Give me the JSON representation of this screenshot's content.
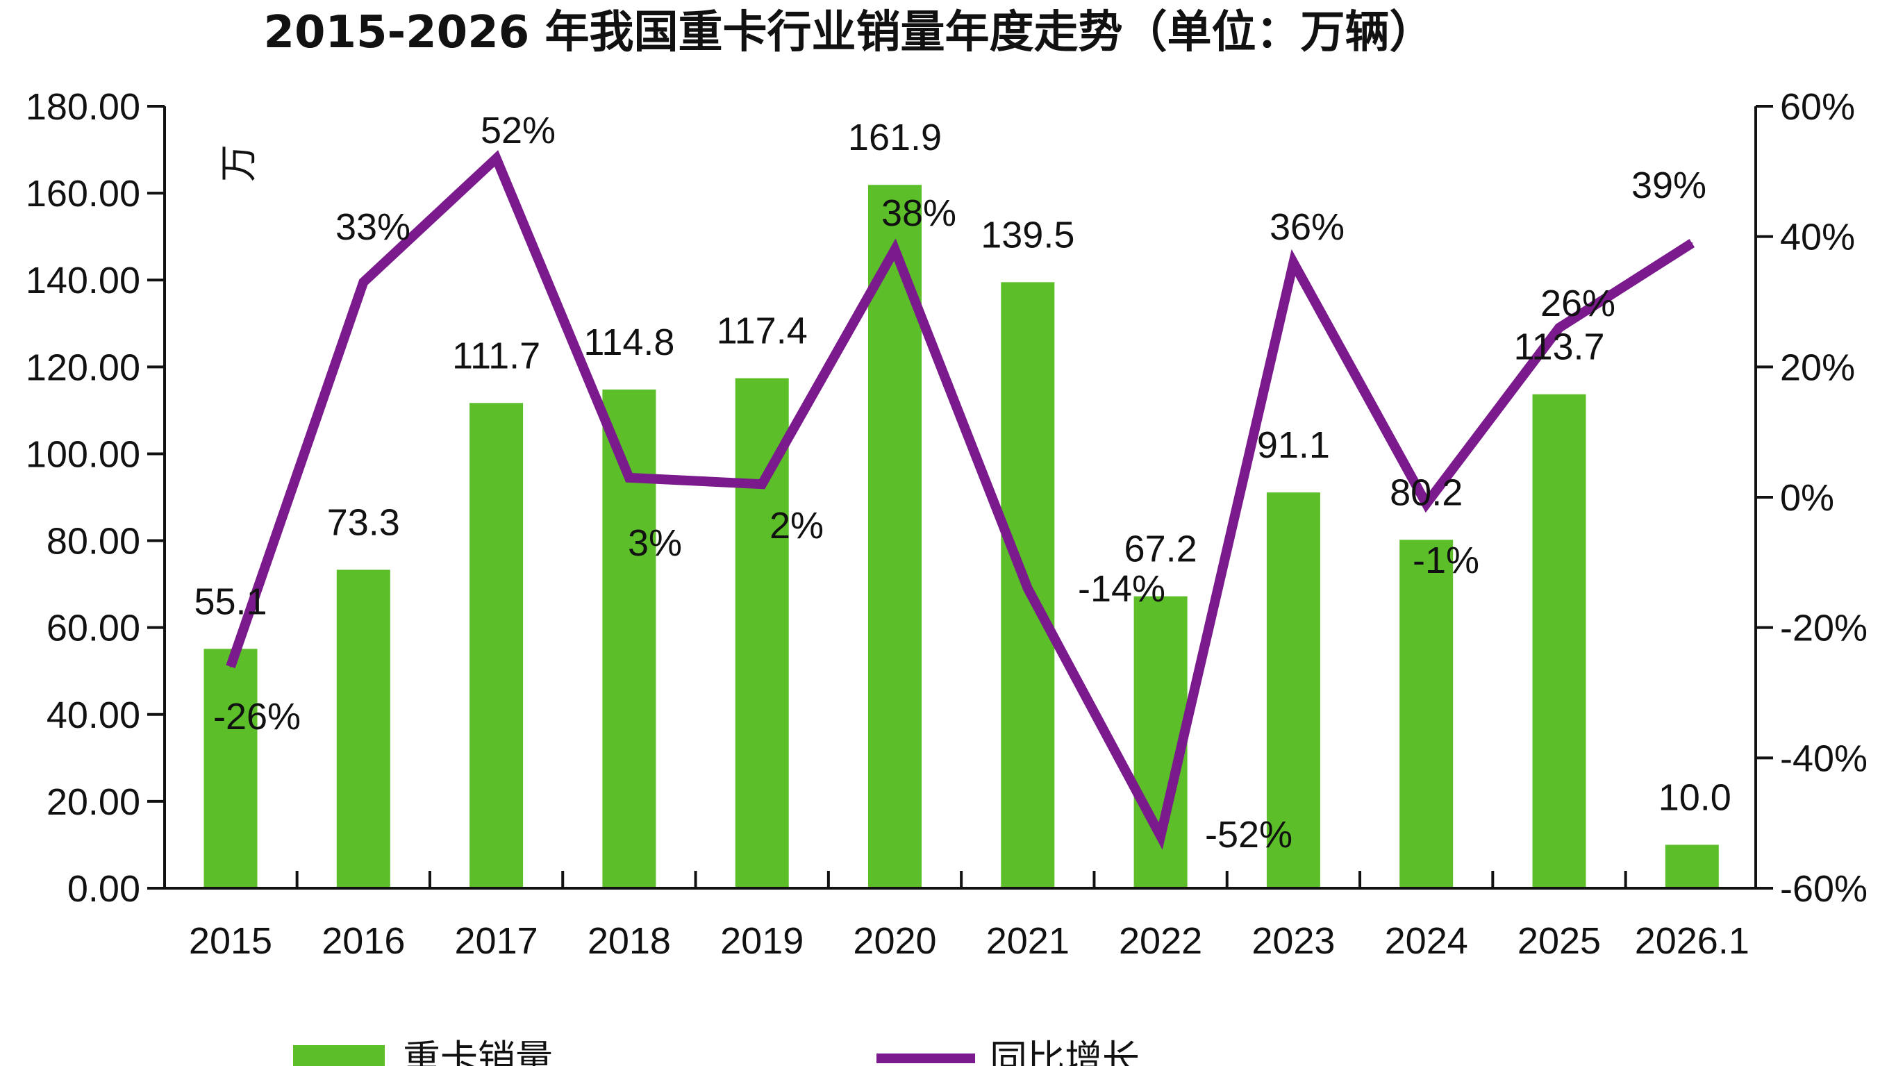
{
  "chart_data": {
    "type": "bar+line",
    "title": "2015-2026 年我国重卡行业销量年度走势（单位：万辆）",
    "ylabel": "万",
    "categories": [
      "2015",
      "2016",
      "2017",
      "2018",
      "2019",
      "2020",
      "2021",
      "2022",
      "2023",
      "2024",
      "2025",
      "2026.1"
    ],
    "series": [
      {
        "name": "重卡销量",
        "type": "bar",
        "axis": "left",
        "color": "#5cbf2a",
        "values": [
          55.1,
          73.3,
          111.7,
          114.8,
          117.4,
          161.9,
          139.5,
          67.2,
          91.1,
          80.2,
          113.7,
          10.0
        ],
        "labels": [
          "55.1",
          "73.3",
          "111.7",
          "114.8",
          "117.4",
          "161.9",
          "139.5",
          "67.2",
          "91.1",
          "80.2",
          "113.7",
          "10.0"
        ]
      },
      {
        "name": "同比增长",
        "type": "line",
        "axis": "right",
        "color": "#7b1a8c",
        "values": [
          -26,
          33,
          52,
          3,
          2,
          38,
          -14,
          -52,
          36,
          -1,
          26,
          39
        ],
        "labels": [
          "-26%",
          "33%",
          "52%",
          "3%",
          "2%",
          "38%",
          "-14%",
          "-52%",
          "36%",
          "-1%",
          "26%",
          "39%"
        ]
      }
    ],
    "y_left": {
      "range": [
        0,
        180
      ],
      "ticks": [
        "0.00",
        "20.00",
        "40.00",
        "60.00",
        "80.00",
        "100.00",
        "120.00",
        "140.00",
        "160.00",
        "180.00"
      ]
    },
    "y_right": {
      "range": [
        -60,
        60
      ],
      "ticks": [
        "-60%",
        "-40%",
        "-20%",
        "0%",
        "20%",
        "40%",
        "60%"
      ]
    },
    "grid": false,
    "legend_position": "bottom"
  }
}
